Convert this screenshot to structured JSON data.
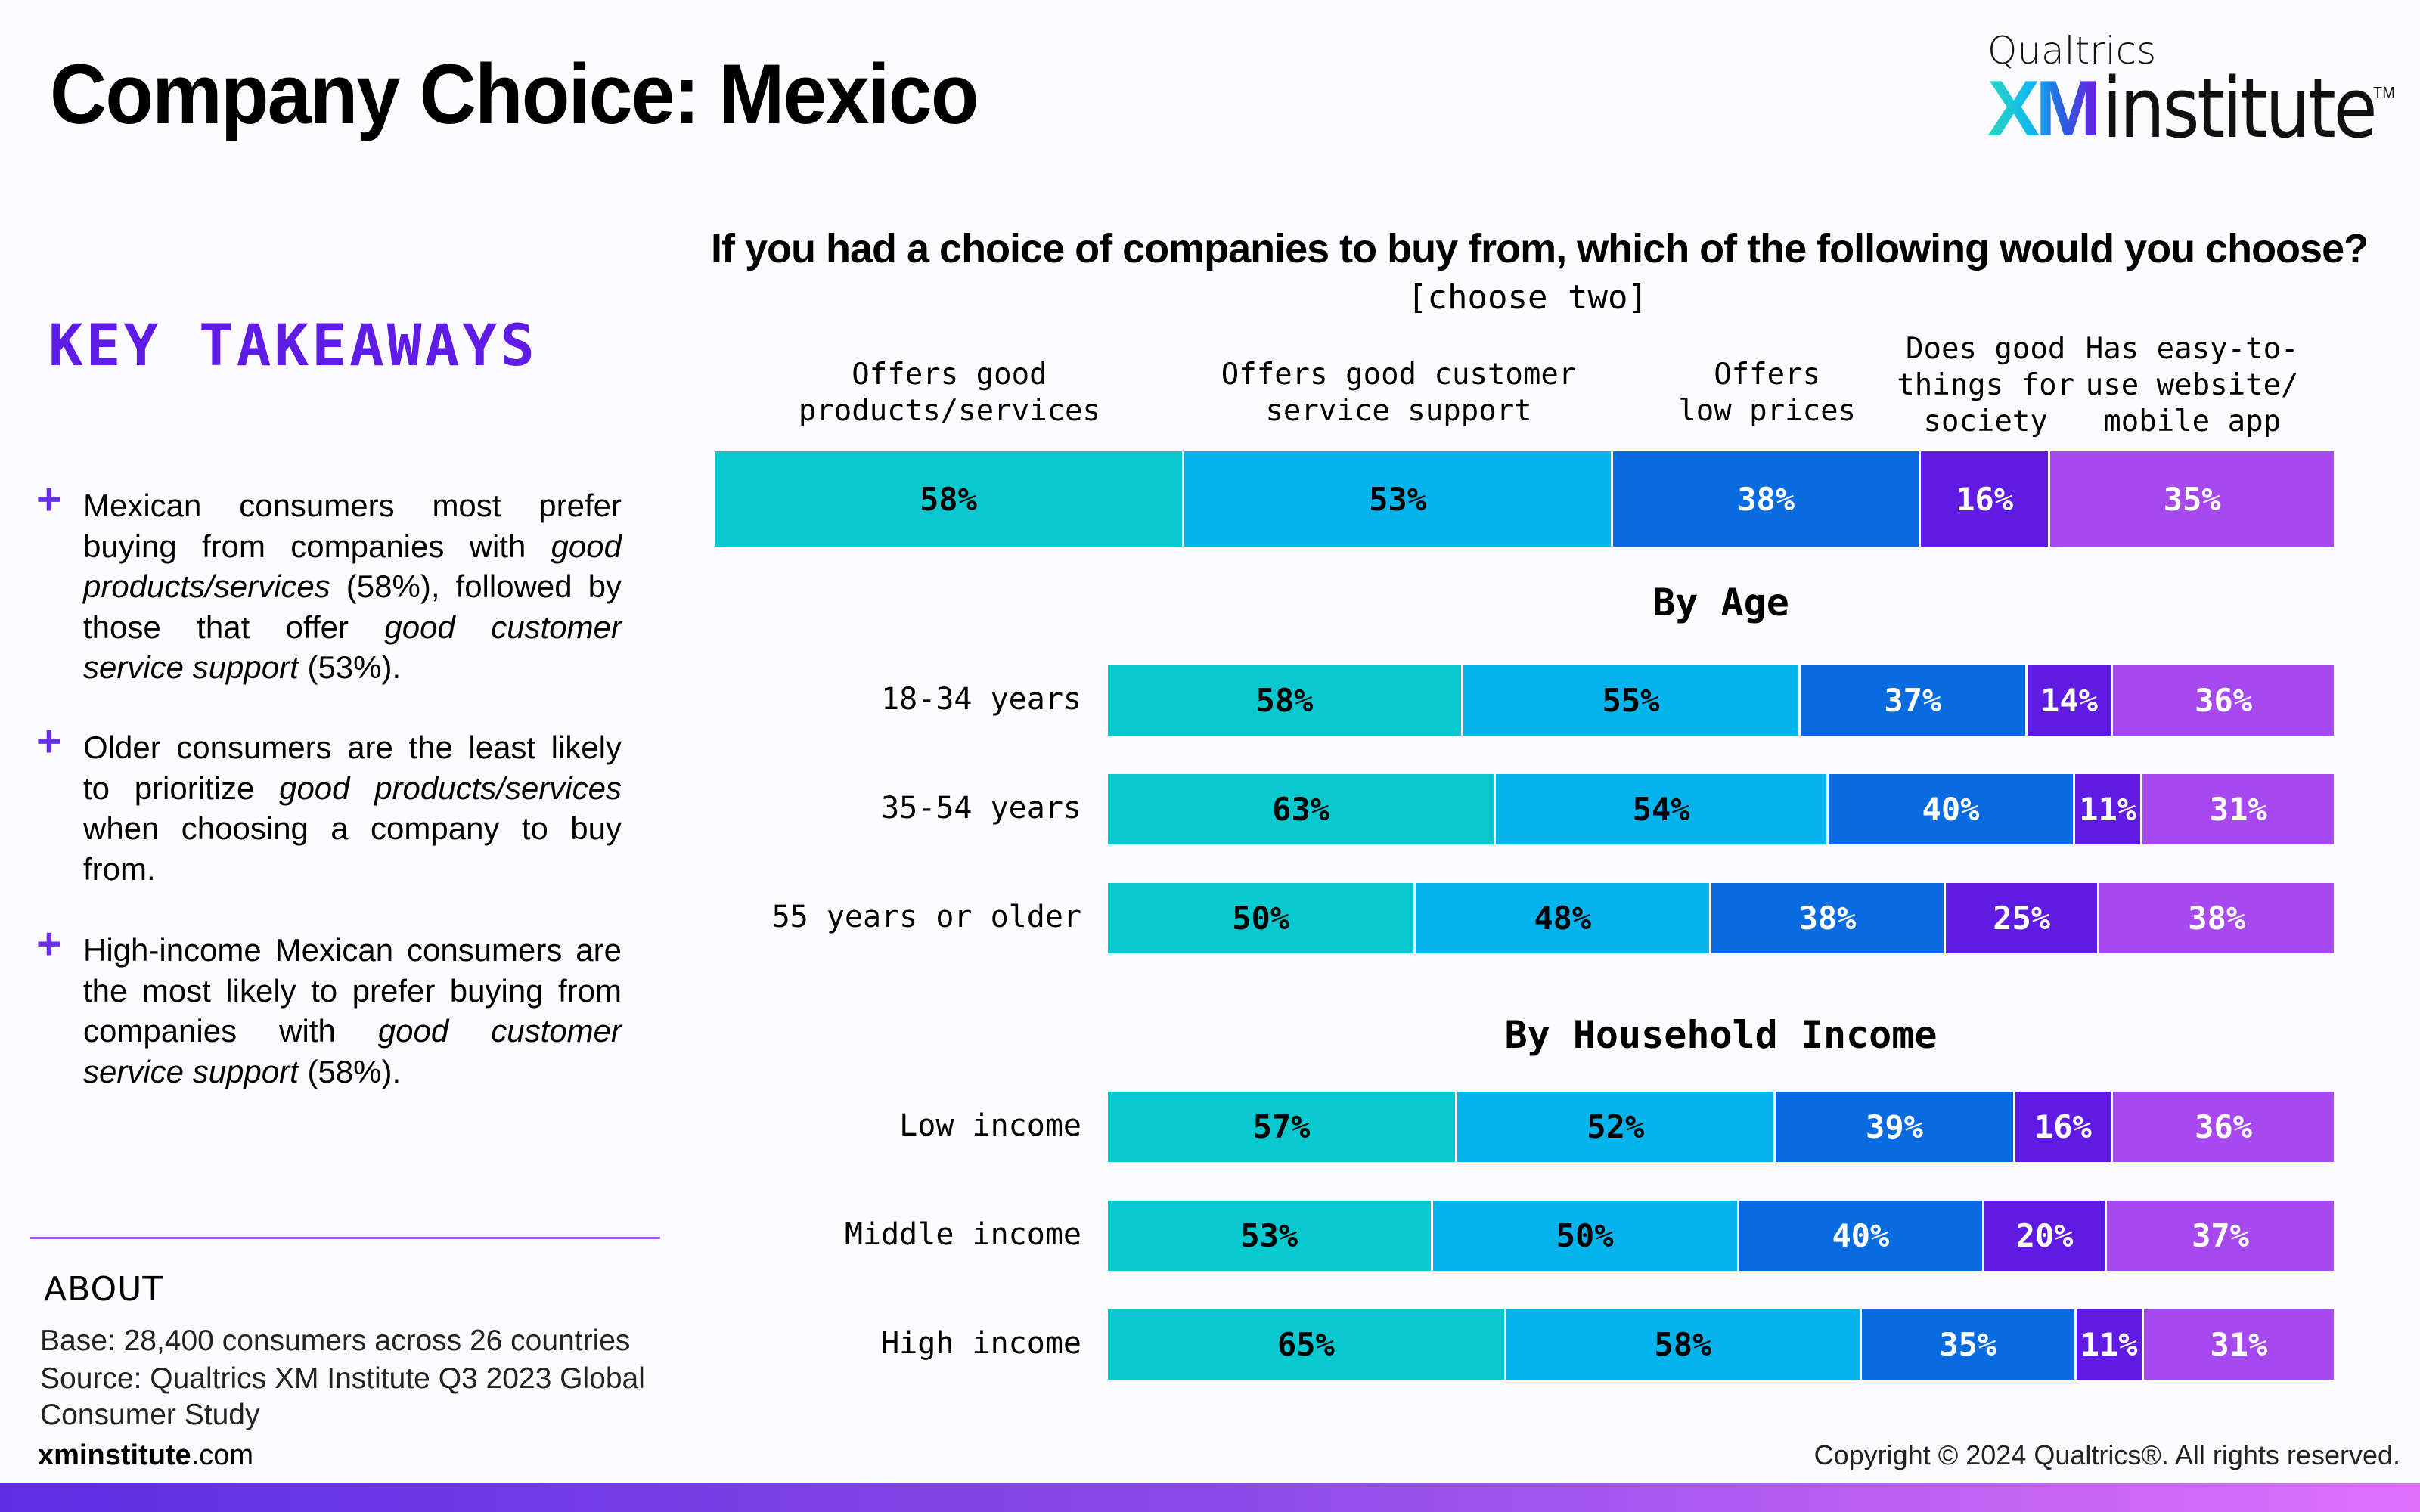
{
  "header": {
    "title": "Company Choice: Mexico",
    "logo": {
      "top": "Qualtrics",
      "xm": "XM",
      "word": "institute",
      "tm": "TM"
    }
  },
  "takeaways": {
    "title": "KEY TAKEAWAYS",
    "bullet_icon": "plus-icon",
    "items": [
      {
        "parts": [
          {
            "t": "Mexican consumers most prefer buying from companies with ",
            "i": false
          },
          {
            "t": "good products/services",
            "i": true
          },
          {
            "t": " (58%), followed by those that offer ",
            "i": false
          },
          {
            "t": "good customer service support",
            "i": true
          },
          {
            "t": " (53%).",
            "i": false
          }
        ]
      },
      {
        "parts": [
          {
            "t": "Older consumers are the least likely to prioritize ",
            "i": false
          },
          {
            "t": "good products/services",
            "i": true
          },
          {
            "t": " when choosing a company to buy from.",
            "i": false
          }
        ]
      },
      {
        "parts": [
          {
            "t": "High-income Mexican consumers are the most likely to prefer buying from companies with ",
            "i": false
          },
          {
            "t": "good customer service support",
            "i": true
          },
          {
            "t": " (58%).",
            "i": false
          }
        ]
      }
    ]
  },
  "about": {
    "title": "ABOUT",
    "base_label": "Base:",
    "base_value": " 28,400 consumers across 26 countries",
    "source_label": "Source:",
    "source_value": " Qualtrics XM Institute Q3 2023 Global Consumer Study"
  },
  "footer": {
    "site_bold": "xminstitute",
    "site_rest": ".com",
    "copyright": "Copyright © 2024 Qualtrics®. All rights reserved."
  },
  "colors": {
    "series": [
      "#0ac8cf",
      "#05b4ec",
      "#086be0",
      "#5f1ae3",
      "#a64af0"
    ],
    "label_text": [
      "#000000",
      "#000000",
      "#ffffff",
      "#ffffff",
      "#ffffff"
    ],
    "accent": "#5e1ce6"
  },
  "chart_data": {
    "type": "bar",
    "stacked": true,
    "orientation": "horizontal",
    "title": "If you had a choice of companies to buy from, which of the following would you choose?",
    "subtitle": "[choose two]",
    "series_names": [
      "Offers good products/services",
      "Offers good customer service support",
      "Offers low prices",
      "Does good things for society",
      "Has easy-to-use website/ mobile app"
    ],
    "series_header_lines": [
      [
        "Offers good",
        "products/services"
      ],
      [
        "Offers good customer",
        "service support"
      ],
      [
        "Offers",
        "low prices"
      ],
      [
        "Does good",
        "things for",
        "society"
      ],
      [
        "Has easy-to-",
        "use website/",
        "mobile app"
      ]
    ],
    "overall": {
      "label": "",
      "values": [
        58,
        53,
        38,
        16,
        35
      ]
    },
    "groups": [
      {
        "title": "By Age",
        "rows": [
          {
            "label": "18-34 years",
            "values": [
              58,
              55,
              37,
              14,
              36
            ]
          },
          {
            "label": "35-54 years",
            "values": [
              63,
              54,
              40,
              11,
              31
            ]
          },
          {
            "label": "55 years or older",
            "values": [
              50,
              48,
              38,
              25,
              38
            ]
          }
        ]
      },
      {
        "title": "By Household Income",
        "rows": [
          {
            "label": "Low income",
            "values": [
              57,
              52,
              39,
              16,
              36
            ]
          },
          {
            "label": "Middle income",
            "values": [
              53,
              50,
              40,
              20,
              37
            ]
          },
          {
            "label": "High income",
            "values": [
              65,
              58,
              35,
              11,
              31
            ]
          }
        ]
      }
    ],
    "value_suffix": "%",
    "legend": "top (column headers)",
    "grid": false
  }
}
